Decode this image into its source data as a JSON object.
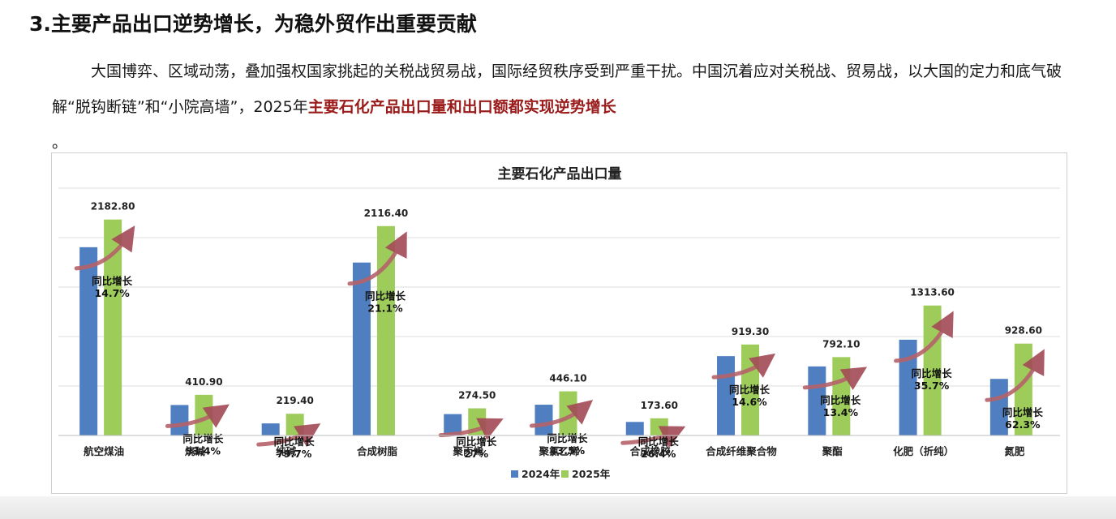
{
  "heading": "3.主要产品出口逆势增长，为稳外贸作出重要贡献",
  "paragraph": {
    "text_before": "大国博弈、区域动荡，叠加强权国家挑起的关税战贸易战，国际经贸秩序受到严重干扰。中国沉着应对关税战、贸易战，以大国的定力和底气破解“脱钩断链”和“小院高墙”，2025年",
    "highlight": "主要石化产品出口量和出口额都实现逆势增长",
    "tail": "。"
  },
  "colors": {
    "series_2024": "#4f7fc1",
    "series_2025": "#9dcc5a",
    "highlight": "#9b1b1b",
    "arrow": "#b5636a"
  },
  "chart_data": {
    "type": "bar",
    "title": "主要石化产品出口量",
    "categories": [
      "航空煤油",
      "烧碱",
      "纯碱",
      "合成树脂",
      "聚丙烯",
      "聚氯乙烯",
      "合成橡胶",
      "合成纤维聚合物",
      "聚酯",
      "化肥（折纯）",
      "氮肥"
    ],
    "series": [
      {
        "name": "2024年",
        "values": [
          1903.0,
          308.0,
          122.0,
          1748.0,
          216.0,
          311.0,
          137.0,
          802.0,
          698.0,
          968.0,
          572.0
        ]
      },
      {
        "name": "2025年",
        "values": [
          2182.8,
          410.9,
          219.4,
          2116.4,
          274.5,
          446.1,
          173.6,
          919.3,
          792.1,
          1313.6,
          928.6
        ]
      }
    ],
    "value_labels": [
      "2182.80",
      "410.90",
      "219.40",
      "2116.40",
      "274.50",
      "446.10",
      "173.60",
      "919.30",
      "792.10",
      "1313.60",
      "928.60"
    ],
    "growth_prefix": "同比增长",
    "growth": [
      "14.7%",
      "33.4%",
      "79.7%",
      "21.1%",
      "27%",
      "43.5%",
      "26.4%",
      "14.6%",
      "13.4%",
      "35.7%",
      "62.3%"
    ],
    "ylim": [
      0,
      2500
    ],
    "grid": true,
    "legend": "bottom-center"
  }
}
